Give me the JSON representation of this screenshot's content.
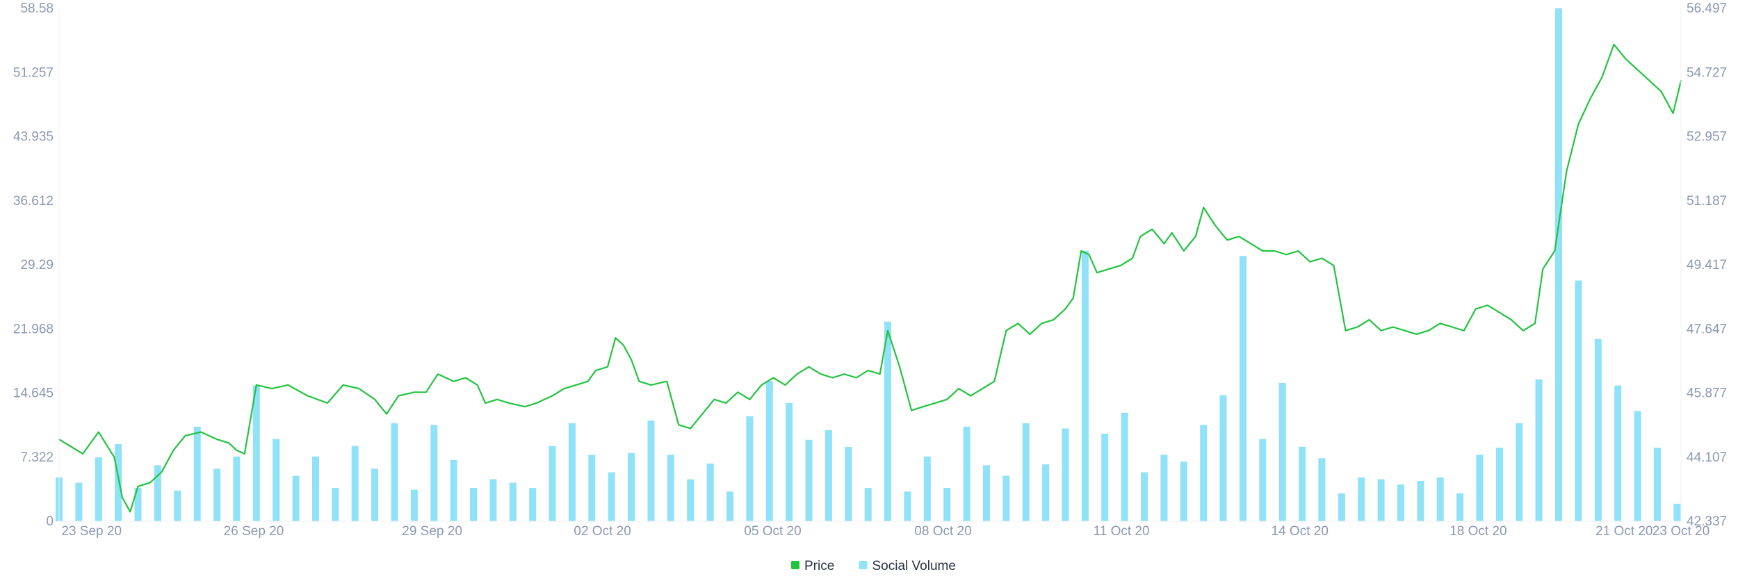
{
  "chart_data": {
    "type": "line",
    "title": "",
    "xlabel": "",
    "ylabel": "",
    "colors": {
      "price": "#22c33f",
      "social_volume": "#8fe2f7",
      "axis_text": "#8c98b3",
      "legend_text": "#2a3240"
    },
    "x_ticks": [
      "23 Sep 20",
      "26 Sep 20",
      "29 Sep 20",
      "02 Oct 20",
      "05 Oct 20",
      "08 Oct 20",
      "11 Oct 20",
      "14 Oct 20",
      "18 Oct 20",
      "21 Oct 20",
      "23 Oct 20"
    ],
    "x_range": [
      "23 Sep 20",
      "23 Oct 20"
    ],
    "left_axis": {
      "label": "",
      "ticks": [
        "0",
        "7.322",
        "14.645",
        "21.968",
        "29.29",
        "36.612",
        "43.935",
        "51.257",
        "58.58"
      ],
      "range": [
        0,
        58.58
      ]
    },
    "right_axis": {
      "label": "",
      "ticks": [
        "42.337",
        "44.107",
        "45.877",
        "47.647",
        "49.417",
        "51.187",
        "52.957",
        "54.727",
        "56.497"
      ],
      "range": [
        42.337,
        56.497
      ]
    },
    "grid": false,
    "legend_position": "bottom-center",
    "legend": [
      {
        "name": "Price",
        "color": "#22c33f"
      },
      {
        "name": "Social Volume",
        "color": "#8fe2f7"
      }
    ],
    "series": [
      {
        "name": "Price",
        "type": "line",
        "axis": "right",
        "points": [
          [
            0.0,
            44.6
          ],
          [
            0.3,
            44.4
          ],
          [
            0.6,
            44.2
          ],
          [
            1.0,
            44.8
          ],
          [
            1.4,
            44.1
          ],
          [
            1.6,
            43.0
          ],
          [
            1.8,
            42.6
          ],
          [
            2.0,
            43.3
          ],
          [
            2.3,
            43.4
          ],
          [
            2.6,
            43.7
          ],
          [
            2.9,
            44.3
          ],
          [
            3.2,
            44.7
          ],
          [
            3.6,
            44.8
          ],
          [
            4.0,
            44.6
          ],
          [
            4.3,
            44.5
          ],
          [
            4.5,
            44.3
          ],
          [
            4.7,
            44.2
          ],
          [
            5.0,
            46.1
          ],
          [
            5.4,
            46.0
          ],
          [
            5.8,
            46.1
          ],
          [
            6.3,
            45.8
          ],
          [
            6.8,
            45.6
          ],
          [
            7.2,
            46.1
          ],
          [
            7.6,
            46.0
          ],
          [
            8.0,
            45.7
          ],
          [
            8.3,
            45.3
          ],
          [
            8.6,
            45.8
          ],
          [
            9.0,
            45.9
          ],
          [
            9.3,
            45.9
          ],
          [
            9.6,
            46.4
          ],
          [
            10.0,
            46.2
          ],
          [
            10.3,
            46.3
          ],
          [
            10.6,
            46.1
          ],
          [
            10.8,
            45.6
          ],
          [
            11.1,
            45.7
          ],
          [
            11.4,
            45.6
          ],
          [
            11.8,
            45.5
          ],
          [
            12.1,
            45.6
          ],
          [
            12.5,
            45.8
          ],
          [
            12.8,
            46.0
          ],
          [
            13.1,
            46.1
          ],
          [
            13.4,
            46.2
          ],
          [
            13.6,
            46.5
          ],
          [
            13.9,
            46.6
          ],
          [
            14.1,
            47.4
          ],
          [
            14.3,
            47.2
          ],
          [
            14.5,
            46.8
          ],
          [
            14.7,
            46.2
          ],
          [
            15.0,
            46.1
          ],
          [
            15.4,
            46.2
          ],
          [
            15.7,
            45.0
          ],
          [
            16.0,
            44.9
          ],
          [
            16.3,
            45.3
          ],
          [
            16.6,
            45.7
          ],
          [
            16.9,
            45.6
          ],
          [
            17.2,
            45.9
          ],
          [
            17.5,
            45.7
          ],
          [
            17.8,
            46.1
          ],
          [
            18.1,
            46.3
          ],
          [
            18.4,
            46.1
          ],
          [
            18.7,
            46.4
          ],
          [
            19.0,
            46.6
          ],
          [
            19.3,
            46.4
          ],
          [
            19.6,
            46.3
          ],
          [
            19.9,
            46.4
          ],
          [
            20.2,
            46.3
          ],
          [
            20.5,
            46.5
          ],
          [
            20.8,
            46.4
          ],
          [
            21.0,
            47.6
          ],
          [
            21.3,
            46.6
          ],
          [
            21.6,
            45.4
          ],
          [
            21.9,
            45.5
          ],
          [
            22.2,
            45.6
          ],
          [
            22.5,
            45.7
          ],
          [
            22.8,
            46.0
          ],
          [
            23.1,
            45.8
          ],
          [
            23.4,
            46.0
          ],
          [
            23.7,
            46.2
          ],
          [
            24.0,
            47.6
          ],
          [
            24.3,
            47.8
          ],
          [
            24.6,
            47.5
          ],
          [
            24.9,
            47.8
          ],
          [
            25.2,
            47.9
          ],
          [
            25.5,
            48.2
          ],
          [
            25.7,
            48.5
          ],
          [
            25.9,
            49.8
          ],
          [
            26.1,
            49.7
          ],
          [
            26.3,
            49.2
          ],
          [
            26.6,
            49.3
          ],
          [
            26.9,
            49.4
          ],
          [
            27.2,
            49.6
          ],
          [
            27.4,
            50.2
          ],
          [
            27.7,
            50.4
          ],
          [
            28.0,
            50.0
          ],
          [
            28.2,
            50.3
          ],
          [
            28.5,
            49.8
          ],
          [
            28.8,
            50.2
          ],
          [
            29.0,
            51.0
          ],
          [
            29.3,
            50.5
          ],
          [
            29.6,
            50.1
          ],
          [
            29.9,
            50.2
          ],
          [
            30.2,
            50.0
          ],
          [
            30.5,
            49.8
          ],
          [
            30.8,
            49.8
          ],
          [
            31.1,
            49.7
          ],
          [
            31.4,
            49.8
          ],
          [
            31.7,
            49.5
          ],
          [
            32.0,
            49.6
          ],
          [
            32.3,
            49.4
          ],
          [
            32.6,
            47.6
          ],
          [
            32.9,
            47.7
          ],
          [
            33.2,
            47.9
          ],
          [
            33.5,
            47.6
          ],
          [
            33.8,
            47.7
          ],
          [
            34.1,
            47.6
          ],
          [
            34.4,
            47.5
          ],
          [
            34.7,
            47.6
          ],
          [
            35.0,
            47.8
          ],
          [
            35.3,
            47.7
          ],
          [
            35.6,
            47.6
          ],
          [
            35.9,
            48.2
          ],
          [
            36.2,
            48.3
          ],
          [
            36.5,
            48.1
          ],
          [
            36.8,
            47.9
          ],
          [
            37.1,
            47.6
          ],
          [
            37.4,
            47.8
          ],
          [
            37.6,
            49.3
          ],
          [
            37.9,
            49.8
          ],
          [
            38.2,
            52.0
          ],
          [
            38.5,
            53.3
          ],
          [
            38.8,
            54.0
          ],
          [
            39.1,
            54.6
          ],
          [
            39.4,
            55.5
          ],
          [
            39.7,
            55.1
          ],
          [
            40.0,
            54.8
          ],
          [
            40.3,
            54.5
          ],
          [
            40.6,
            54.2
          ],
          [
            40.9,
            53.6
          ],
          [
            41.1,
            54.5
          ]
        ]
      },
      {
        "name": "Social Volume",
        "type": "bar",
        "axis": "left",
        "points": [
          [
            0.0,
            5.0
          ],
          [
            0.5,
            4.4
          ],
          [
            1.0,
            7.3
          ],
          [
            1.5,
            8.8
          ],
          [
            2.0,
            3.8
          ],
          [
            2.5,
            6.4
          ],
          [
            3.0,
            3.5
          ],
          [
            3.5,
            10.8
          ],
          [
            4.0,
            6.0
          ],
          [
            4.5,
            7.4
          ],
          [
            5.0,
            15.5
          ],
          [
            5.5,
            9.4
          ],
          [
            6.0,
            5.2
          ],
          [
            6.5,
            7.4
          ],
          [
            7.0,
            3.8
          ],
          [
            7.5,
            8.6
          ],
          [
            8.0,
            6.0
          ],
          [
            8.5,
            11.2
          ],
          [
            9.0,
            3.6
          ],
          [
            9.5,
            11.0
          ],
          [
            10.0,
            7.0
          ],
          [
            10.5,
            3.8
          ],
          [
            11.0,
            4.8
          ],
          [
            11.5,
            4.4
          ],
          [
            12.0,
            3.8
          ],
          [
            12.5,
            8.6
          ],
          [
            13.0,
            11.2
          ],
          [
            13.5,
            7.6
          ],
          [
            14.0,
            5.6
          ],
          [
            14.5,
            7.8
          ],
          [
            15.0,
            11.5
          ],
          [
            15.5,
            7.6
          ],
          [
            16.0,
            4.8
          ],
          [
            16.5,
            6.6
          ],
          [
            17.0,
            3.4
          ],
          [
            17.5,
            12.0
          ],
          [
            18.0,
            16.0
          ],
          [
            18.5,
            13.5
          ],
          [
            19.0,
            9.3
          ],
          [
            19.5,
            10.4
          ],
          [
            20.0,
            8.5
          ],
          [
            20.5,
            3.8
          ],
          [
            21.0,
            22.8
          ],
          [
            21.5,
            3.4
          ],
          [
            22.0,
            7.4
          ],
          [
            22.5,
            3.8
          ],
          [
            23.0,
            10.8
          ],
          [
            23.5,
            6.4
          ],
          [
            24.0,
            5.2
          ],
          [
            24.5,
            11.2
          ],
          [
            25.0,
            6.5
          ],
          [
            25.5,
            10.6
          ],
          [
            26.0,
            30.9
          ],
          [
            26.5,
            10.0
          ],
          [
            27.0,
            12.4
          ],
          [
            27.5,
            5.6
          ],
          [
            28.0,
            7.6
          ],
          [
            28.5,
            6.8
          ],
          [
            29.0,
            11.0
          ],
          [
            29.5,
            14.4
          ],
          [
            30.0,
            30.3
          ],
          [
            30.5,
            9.4
          ],
          [
            31.0,
            15.8
          ],
          [
            31.5,
            8.5
          ],
          [
            32.0,
            7.2
          ],
          [
            32.5,
            3.2
          ],
          [
            33.0,
            5.0
          ],
          [
            33.5,
            4.8
          ],
          [
            34.0,
            4.2
          ],
          [
            34.5,
            4.6
          ],
          [
            35.0,
            5.0
          ],
          [
            35.5,
            3.2
          ],
          [
            36.0,
            7.6
          ],
          [
            36.5,
            8.4
          ],
          [
            37.0,
            11.2
          ],
          [
            37.5,
            16.2
          ],
          [
            38.0,
            58.58
          ],
          [
            38.5,
            27.5
          ],
          [
            39.0,
            20.8
          ],
          [
            39.5,
            15.5
          ],
          [
            40.0,
            12.6
          ],
          [
            40.5,
            8.4
          ],
          [
            41.0,
            2.0
          ]
        ]
      }
    ]
  }
}
